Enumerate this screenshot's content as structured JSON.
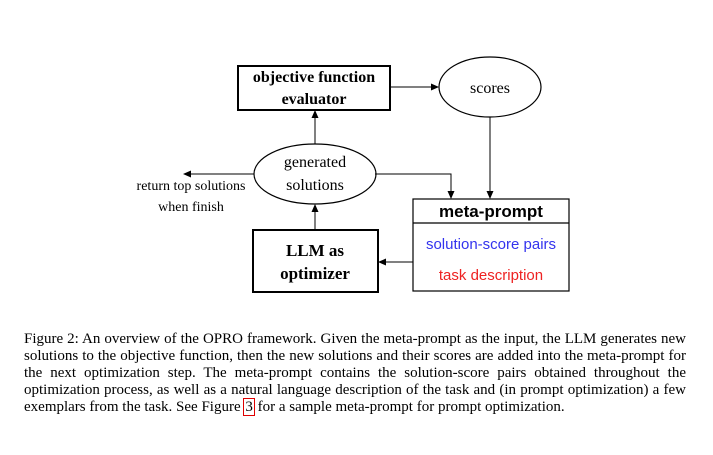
{
  "diagram": {
    "evaluator": {
      "line1": "objective function",
      "line2": "evaluator"
    },
    "scores": "scores",
    "generated": {
      "line1": "generated",
      "line2": "solutions"
    },
    "return_note": {
      "line1": "return top solutions",
      "line2": "when finish"
    },
    "llm": {
      "line1": "LLM as",
      "line2": "optimizer"
    },
    "meta_prompt": {
      "title": "meta-prompt",
      "item1": "solution-score pairs",
      "item2": "task description"
    },
    "colors": {
      "solution_pairs": "#3333ee",
      "task_description": "#ee2222",
      "stroke": "#000000"
    }
  },
  "caption": {
    "prefix": "Figure 2: An overview of the OPRO framework. Given the meta-prompt as the input, the LLM generates new solutions to the objective function, then the new solutions and their scores are added into the meta-prompt for the next optimization step. The meta-prompt contains the solution-score pairs obtained throughout the optimization process, as well as a natural language description of the task and (in prompt optimization) a few exemplars from the task. See Figure ",
    "ref": "3",
    "suffix": " for a sample meta-prompt for prompt optimization."
  }
}
